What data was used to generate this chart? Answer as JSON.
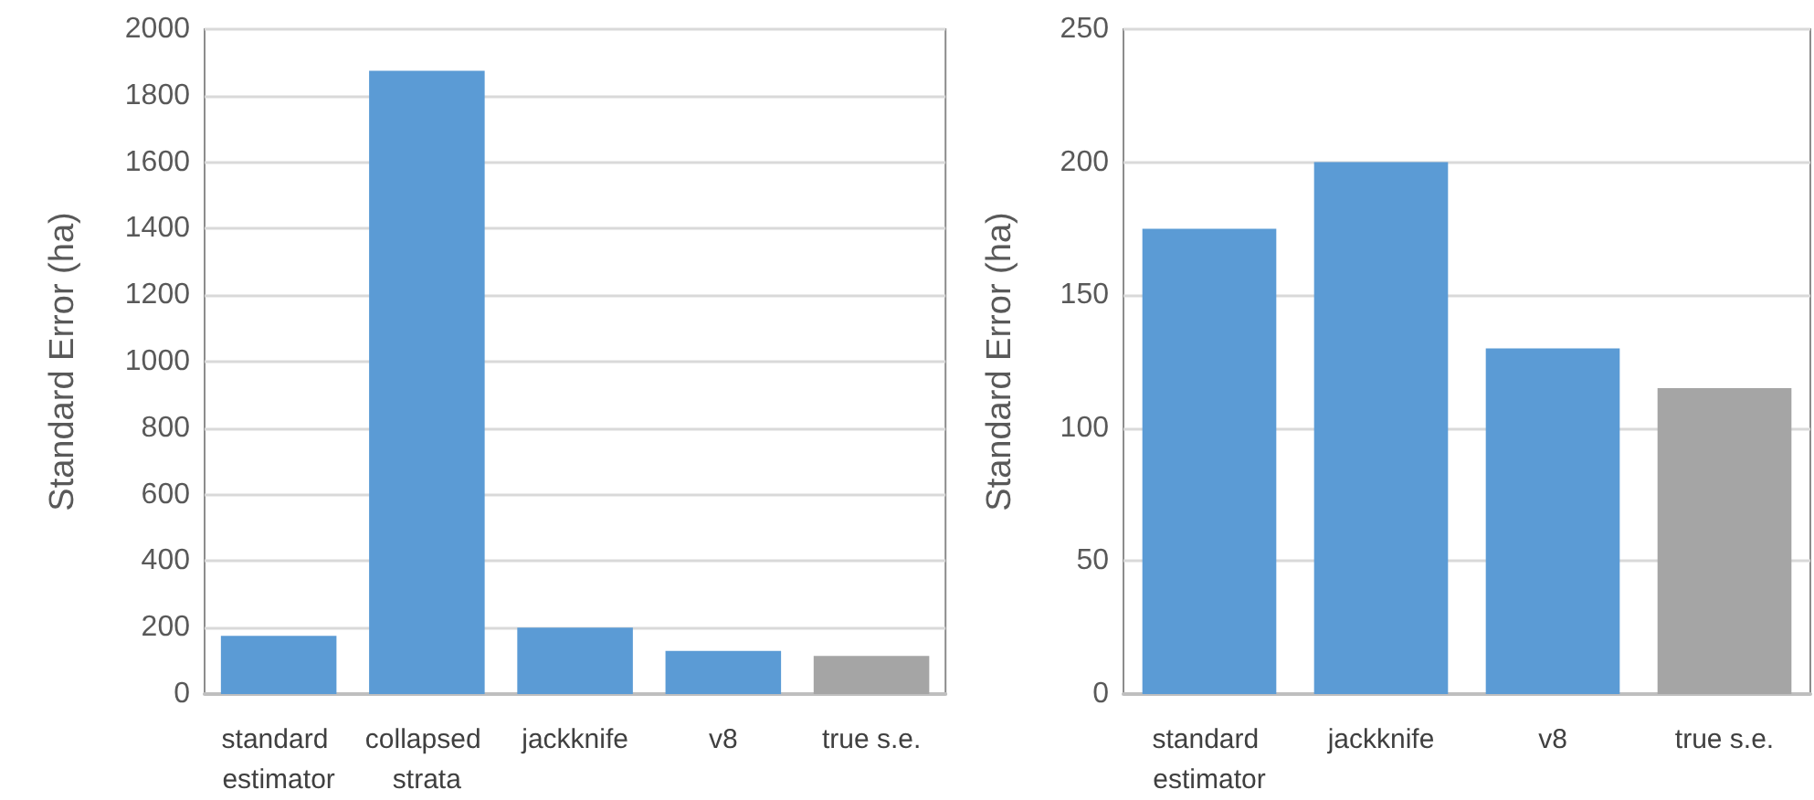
{
  "chart_data": [
    {
      "type": "bar",
      "ylabel": "Standard Error (ha)",
      "categories": [
        "standard estimator",
        "collapsed strata",
        "jackknife",
        "v8",
        "true s.e."
      ],
      "values": [
        175,
        1875,
        200,
        130,
        115
      ],
      "colors": [
        "#5b9bd5",
        "#5b9bd5",
        "#5b9bd5",
        "#5b9bd5",
        "#a5a5a5"
      ],
      "ylim": [
        0,
        2000
      ],
      "yticks": [
        0,
        200,
        400,
        600,
        800,
        1000,
        1200,
        1400,
        1600,
        1800,
        2000
      ],
      "grid": "y"
    },
    {
      "type": "bar",
      "ylabel": "Standard Error (ha)",
      "categories": [
        "standard estimator",
        "jackknife",
        "v8",
        "true s.e."
      ],
      "values": [
        175,
        200,
        130,
        115
      ],
      "colors": [
        "#5b9bd5",
        "#5b9bd5",
        "#5b9bd5",
        "#a5a5a5"
      ],
      "ylim": [
        0,
        250
      ],
      "yticks": [
        0,
        50,
        100,
        150,
        200,
        250
      ],
      "grid": "y"
    }
  ]
}
